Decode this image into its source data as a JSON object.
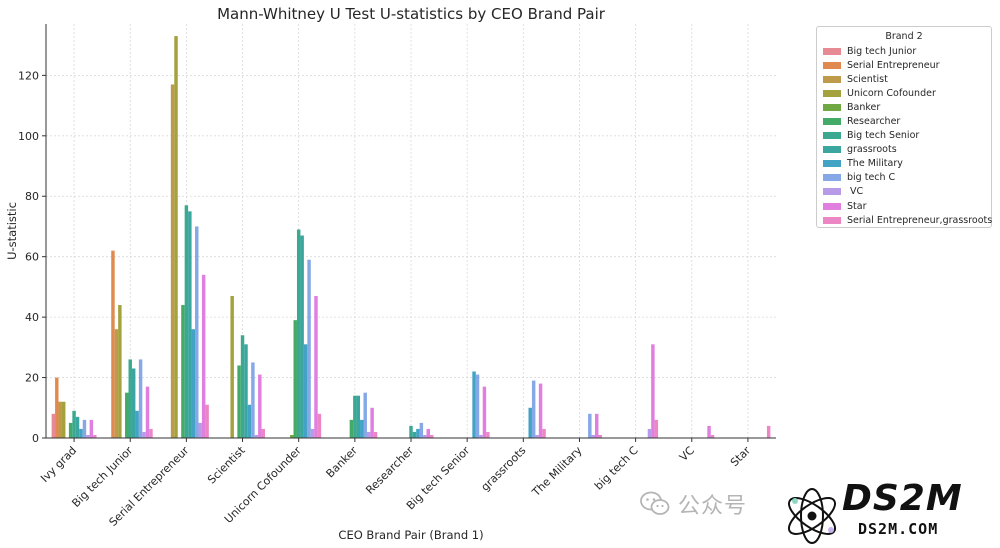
{
  "chart_data": {
    "type": "bar",
    "title": "Mann-Whitney U Test U-statistics by CEO Brand Pair",
    "xlabel": "CEO Brand Pair (Brand 1)",
    "ylabel": "U-statistic",
    "ylim": [
      0,
      137
    ],
    "yticks": [
      0,
      20,
      40,
      60,
      80,
      100,
      120
    ],
    "grid": true,
    "legend_title": "Brand 2",
    "legend_position": "right",
    "categories": [
      "Ivy grad",
      "Big tech Junior",
      "Serial Entrepreneur",
      "Scientist",
      "Unicorn Cofounder",
      "Banker",
      "Researcher",
      "Big tech Senior",
      "grassroots",
      "The Military",
      "big tech C",
      "VC",
      "Star"
    ],
    "series": [
      {
        "name": "Big tech Junior",
        "color": "#e88a93",
        "values": [
          8,
          null,
          null,
          null,
          null,
          null,
          null,
          null,
          null,
          null,
          null,
          null,
          null
        ]
      },
      {
        "name": "Serial Entrepreneur",
        "color": "#e08a4f",
        "values": [
          20,
          62,
          null,
          null,
          null,
          null,
          null,
          null,
          null,
          null,
          null,
          null,
          null
        ]
      },
      {
        "name": "Scientist",
        "color": "#c09a4b",
        "values": [
          12,
          36,
          117,
          null,
          null,
          null,
          null,
          null,
          null,
          null,
          null,
          null,
          null
        ]
      },
      {
        "name": "Unicorn Cofounder",
        "color": "#a3a23c",
        "values": [
          12,
          44,
          133,
          47,
          null,
          null,
          null,
          null,
          null,
          null,
          null,
          null,
          null
        ]
      },
      {
        "name": "Banker",
        "color": "#6fa743",
        "values": [
          null,
          null,
          null,
          null,
          1,
          null,
          null,
          null,
          null,
          null,
          null,
          null,
          null
        ]
      },
      {
        "name": "Researcher",
        "color": "#44aa67",
        "values": [
          5,
          15,
          44,
          24,
          39,
          6,
          null,
          null,
          null,
          null,
          null,
          null,
          null
        ]
      },
      {
        "name": "Big tech Senior",
        "color": "#3da890",
        "values": [
          9,
          26,
          77,
          34,
          69,
          14,
          4,
          null,
          null,
          null,
          null,
          null,
          null
        ]
      },
      {
        "name": "grassroots",
        "color": "#3aa69f",
        "values": [
          7,
          23,
          75,
          31,
          67,
          14,
          2,
          null,
          null,
          null,
          null,
          null,
          null
        ]
      },
      {
        "name": "The Military",
        "color": "#43a3c4",
        "values": [
          3,
          9,
          36,
          11,
          31,
          6,
          3,
          22,
          10,
          null,
          null,
          null,
          null
        ]
      },
      {
        "name": "big tech C",
        "color": "#86a8e6",
        "values": [
          6,
          26,
          70,
          25,
          59,
          15,
          5,
          21,
          19,
          8,
          null,
          null,
          null
        ]
      },
      {
        "name": " VC",
        "color": "#b89be8",
        "values": [
          1,
          2,
          5,
          1,
          3,
          2,
          1,
          1,
          1,
          1,
          3,
          null,
          null
        ]
      },
      {
        "name": "Star",
        "color": "#e07fe0",
        "values": [
          6,
          17,
          54,
          21,
          47,
          10,
          3,
          17,
          18,
          8,
          31,
          4,
          null
        ]
      },
      {
        "name": "Serial Entrepreneur,grassroots",
        "color": "#ec86c4",
        "values": [
          1,
          3,
          11,
          3,
          8,
          2,
          1,
          2,
          3,
          1,
          6,
          1,
          4
        ]
      }
    ]
  },
  "watermark": {
    "text": "公众号"
  },
  "logo": {
    "main": "DS2M",
    "sub": "DS2M.COM"
  }
}
